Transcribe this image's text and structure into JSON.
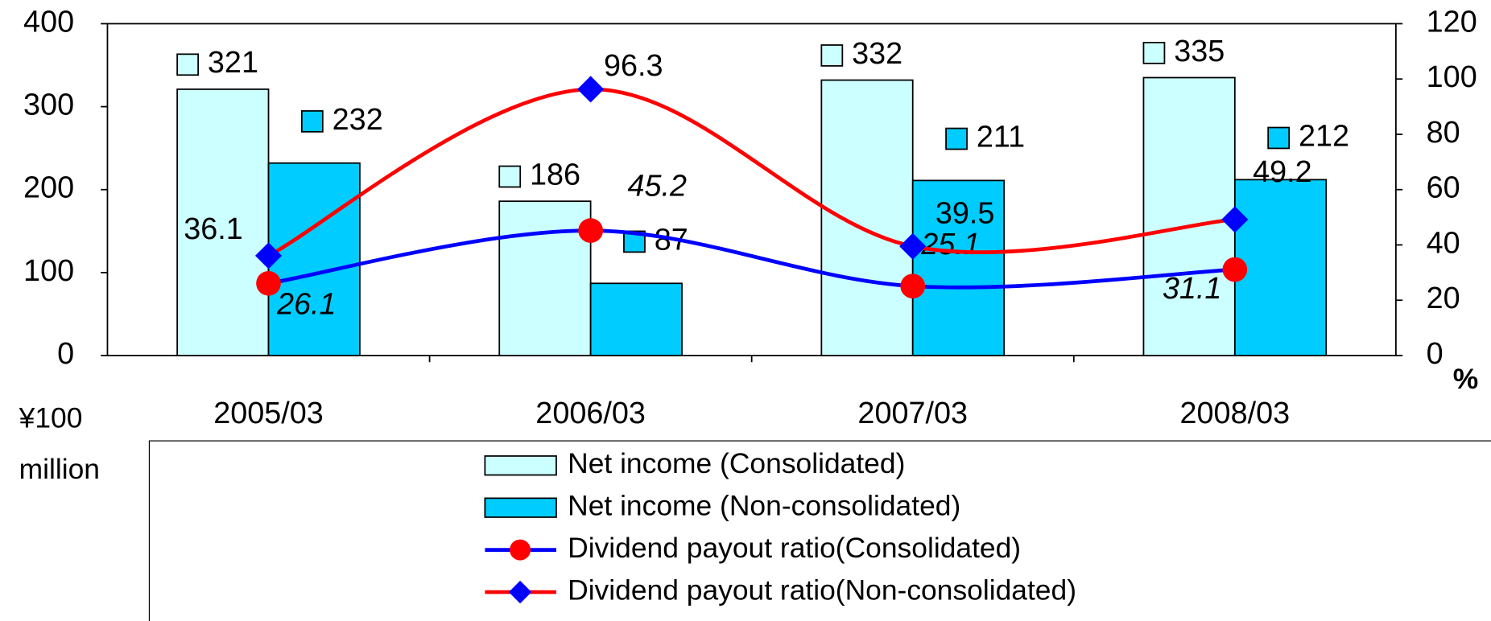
{
  "chart_data": {
    "type": "bar_line",
    "categories": [
      "2005/03",
      "2006/03",
      "2007/03",
      "2008/03"
    ],
    "y_label": [
      "¥100",
      "million"
    ],
    "y2_label": "%",
    "ylim": [
      0,
      400
    ],
    "yticks": [
      0,
      100,
      200,
      300,
      400
    ],
    "y2lim": [
      0,
      120
    ],
    "y2ticks": [
      0,
      20,
      40,
      60,
      80,
      100,
      120
    ],
    "series": [
      {
        "name": "Net income (Consolidated)",
        "type": "bar",
        "color": "#ccffff",
        "values": [
          321,
          186,
          332,
          335
        ]
      },
      {
        "name": "Net income (Non-consolidated)",
        "type": "bar",
        "color": "#00ccff",
        "values": [
          232,
          87,
          211,
          212
        ]
      },
      {
        "name": "Dividend payout ratio(Consolidated)",
        "type": "line",
        "axis": "y2",
        "color": "#0000ff",
        "marker": "circle",
        "marker_color": "#ff0000",
        "values": [
          26.1,
          45.2,
          25.1,
          31.1
        ]
      },
      {
        "name": "Dividend payout ratio(Non-consolidated)",
        "type": "line",
        "axis": "y2",
        "color": "#ff0000",
        "marker": "diamond",
        "marker_color": "#0000ff",
        "values": [
          36.1,
          96.3,
          39.5,
          49.2
        ]
      }
    ]
  }
}
